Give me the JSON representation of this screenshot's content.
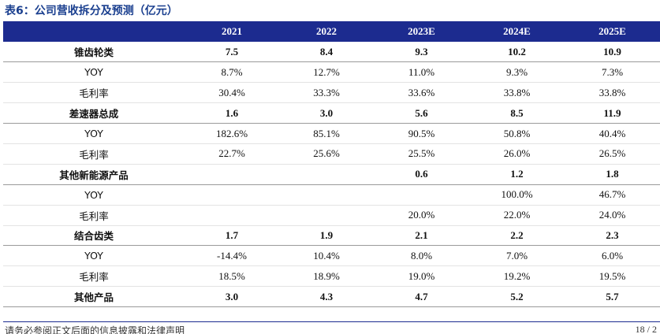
{
  "caption": "表6：公司营收拆分及预测（亿元）",
  "header": [
    "",
    "2021",
    "2022",
    "2023E",
    "2024E",
    "2025E"
  ],
  "rows": [
    {
      "type": "main",
      "cells": [
        "锥齿轮类",
        "7.5",
        "8.4",
        "9.3",
        "10.2",
        "10.9"
      ]
    },
    {
      "type": "sub",
      "cells": [
        "YOY",
        "8.7%",
        "12.7%",
        "11.0%",
        "9.3%",
        "7.3%"
      ]
    },
    {
      "type": "sub",
      "cells": [
        "毛利率",
        "30.4%",
        "33.3%",
        "33.6%",
        "33.8%",
        "33.8%"
      ]
    },
    {
      "type": "main",
      "cells": [
        "差速器总成",
        "1.6",
        "3.0",
        "5.6",
        "8.5",
        "11.9"
      ]
    },
    {
      "type": "sub",
      "cells": [
        "YOY",
        "182.6%",
        "85.1%",
        "90.5%",
        "50.8%",
        "40.4%"
      ]
    },
    {
      "type": "sub",
      "cells": [
        "毛利率",
        "22.7%",
        "25.6%",
        "25.5%",
        "26.0%",
        "26.5%"
      ]
    },
    {
      "type": "main",
      "cells": [
        "其他新能源产品",
        "",
        "",
        "0.6",
        "1.2",
        "1.8"
      ]
    },
    {
      "type": "sub",
      "cells": [
        "YOY",
        "",
        "",
        "",
        "100.0%",
        "46.7%"
      ]
    },
    {
      "type": "sub",
      "cells": [
        "毛利率",
        "",
        "",
        "20.0%",
        "22.0%",
        "24.0%"
      ]
    },
    {
      "type": "main",
      "cells": [
        "结合齿类",
        "1.7",
        "1.9",
        "2.1",
        "2.2",
        "2.3"
      ]
    },
    {
      "type": "sub",
      "cells": [
        "YOY",
        "-14.4%",
        "10.4%",
        "8.0%",
        "7.0%",
        "6.0%"
      ]
    },
    {
      "type": "sub",
      "cells": [
        "毛利率",
        "18.5%",
        "18.9%",
        "19.0%",
        "19.2%",
        "19.5%"
      ]
    },
    {
      "type": "main",
      "cells": [
        "其他产品",
        "3.0",
        "4.3",
        "4.7",
        "5.2",
        "5.7"
      ]
    }
  ],
  "footer": {
    "disclaimer": "请务必参阅正文后面的信息披露和法律声明",
    "page": "18 / 2"
  }
}
